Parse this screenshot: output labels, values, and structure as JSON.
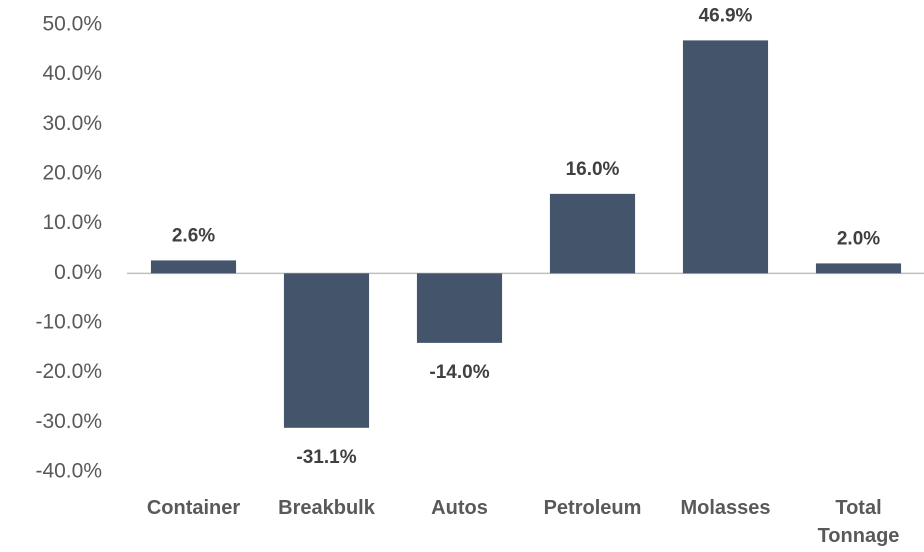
{
  "chart_data": {
    "type": "bar",
    "categories": [
      "Container",
      "Breakbulk",
      "Autos",
      "Petroleum",
      "Molasses",
      "Total Tonnage"
    ],
    "values": [
      2.6,
      -31.1,
      -14.0,
      16.0,
      46.9,
      2.0
    ],
    "value_labels": [
      "2.6%",
      "-31.1%",
      "-14.0%",
      "16.0%",
      "46.9%",
      "2.0%"
    ],
    "color": "#44546a",
    "ylim": [
      -40,
      50
    ],
    "yticks": [
      {
        "value": -40,
        "label": "-40.0%"
      },
      {
        "value": -30,
        "label": "-30.0%"
      },
      {
        "value": -20,
        "label": "-20.0%"
      },
      {
        "value": -10,
        "label": "-10.0%"
      },
      {
        "value": 0,
        "label": "0.0%"
      },
      {
        "value": 10,
        "label": "10.0%"
      },
      {
        "value": 20,
        "label": "20.0%"
      },
      {
        "value": 30,
        "label": "30.0%"
      },
      {
        "value": 40,
        "label": "40.0%"
      },
      {
        "value": 50,
        "label": "50.0%"
      }
    ],
    "grid": false
  }
}
